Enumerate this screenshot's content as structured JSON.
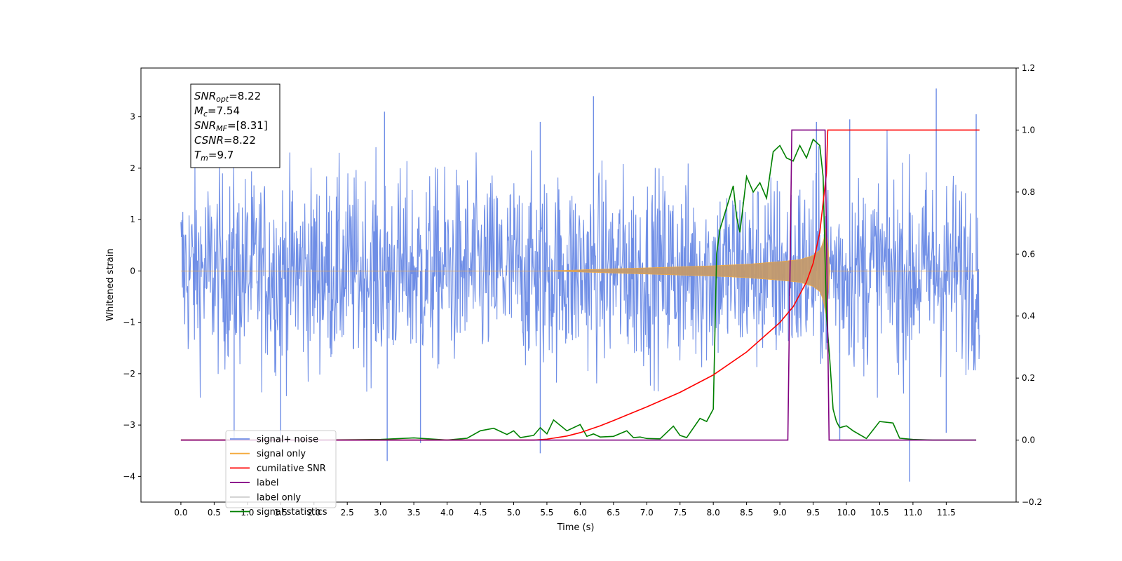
{
  "chart_data": {
    "type": "line",
    "xlabel": "Time (s)",
    "ylabel": "Whitened strain",
    "xlim": [
      -0.6,
      12.55
    ],
    "ylim": [
      -4.5,
      3.95
    ],
    "y2lim": [
      -0.2,
      1.2
    ],
    "x_ticks": [
      0.0,
      0.5,
      1.0,
      1.5,
      2.0,
      2.5,
      3.0,
      3.5,
      4.0,
      4.5,
      5.0,
      5.5,
      6.0,
      6.5,
      7.0,
      7.5,
      8.0,
      8.5,
      9.0,
      9.5,
      10.0,
      10.5,
      11.0,
      11.5
    ],
    "x_tick_labels": [
      "0.0",
      "0.5",
      "1.0",
      "1.5",
      "2.0",
      "2.5",
      "3.0",
      "3.5",
      "4.0",
      "4.5",
      "5.0",
      "5.5",
      "6.0",
      "6.5",
      "7.0",
      "7.5",
      "8.0",
      "8.5",
      "9.0",
      "9.5",
      "10.0",
      "10.5",
      "11.0",
      "11.5"
    ],
    "y_ticks": [
      3,
      2,
      1,
      0,
      -1,
      -2,
      -3,
      -4
    ],
    "y_tick_labels": [
      "3",
      "2",
      "1",
      "0",
      "−1",
      "−2",
      "−3",
      "−4"
    ],
    "y2_ticks": [
      1.2,
      1.0,
      0.8,
      0.6,
      0.4,
      0.2,
      0.0,
      -0.2
    ],
    "y2_tick_labels": [
      "1.2",
      "1.0",
      "0.8",
      "0.6",
      "0.4",
      "0.2",
      "0.0",
      "−0.2"
    ],
    "grid": false,
    "legend_position": "lower-left",
    "annotation": {
      "lines": [
        {
          "sym": "SNR",
          "sub": "opt",
          "val": "=8.22"
        },
        {
          "sym": "M",
          "sub": "c",
          "val": "=7.54"
        },
        {
          "sym": "SNR",
          "sub": "MF",
          "val": "=[8.31]"
        },
        {
          "sym": "CSNR",
          "sub": "",
          "val": "=8.22"
        },
        {
          "sym": "T",
          "sub": "m",
          "val": "=9.7"
        }
      ]
    },
    "series": [
      {
        "name": "signal+ noise",
        "axis": "left",
        "color": "#6f8ee6",
        "style": "noise band",
        "x_range": [
          0.0,
          12.0
        ],
        "envelope_upper": 2.6,
        "envelope_lower": -2.6,
        "spikes": [
          {
            "x": 3.06,
            "y": 3.1
          },
          {
            "x": 5.4,
            "y": 2.9
          },
          {
            "x": 6.2,
            "y": 3.4
          },
          {
            "x": 9.55,
            "y": 2.9
          },
          {
            "x": 10.05,
            "y": 2.95
          },
          {
            "x": 11.35,
            "y": 3.55
          },
          {
            "x": 11.95,
            "y": 3.05
          },
          {
            "x": 3.1,
            "y": -3.7
          },
          {
            "x": 3.6,
            "y": -3.35
          },
          {
            "x": 5.4,
            "y": -3.55
          },
          {
            "x": 0.8,
            "y": -3.3
          },
          {
            "x": 1.5,
            "y": -3.2
          },
          {
            "x": 9.9,
            "y": -3.3
          },
          {
            "x": 10.95,
            "y": -4.1
          },
          {
            "x": 11.5,
            "y": -3.15
          }
        ]
      },
      {
        "name": "signal only",
        "axis": "left",
        "color": "#f4a93b",
        "style": "chirp",
        "x": [
          0.0,
          5.5,
          6.0,
          6.5,
          7.0,
          7.5,
          8.0,
          8.5,
          9.0,
          9.3,
          9.5,
          9.6,
          9.65,
          9.7,
          9.75,
          12.0
        ],
        "amplitude": [
          0.0,
          0.0,
          0.02,
          0.04,
          0.06,
          0.08,
          0.1,
          0.13,
          0.18,
          0.22,
          0.3,
          0.4,
          0.55,
          0.9,
          0.0,
          0.0
        ]
      },
      {
        "name": "cumilative SNR",
        "axis": "right",
        "color": "#ff0000",
        "x": [
          0.0,
          5.3,
          5.5,
          5.8,
          6.0,
          6.3,
          6.5,
          7.0,
          7.5,
          8.0,
          8.5,
          9.0,
          9.2,
          9.4,
          9.5,
          9.6,
          9.7,
          9.72,
          12.0
        ],
        "y": [
          0.0,
          0.0,
          0.003,
          0.013,
          0.024,
          0.046,
          0.063,
          0.107,
          0.154,
          0.21,
          0.284,
          0.379,
          0.43,
          0.51,
          0.57,
          0.67,
          0.86,
          1.0,
          1.0
        ]
      },
      {
        "name": "label",
        "axis": "right",
        "color": "#800080",
        "x": [
          0.0,
          9.12,
          9.18,
          9.68,
          9.74,
          11.95
        ],
        "y": [
          0.0,
          0.0,
          1.0,
          1.0,
          0.0,
          0.0
        ]
      },
      {
        "name": "label only",
        "axis": "right",
        "color": "#cccccc",
        "hidden": true,
        "x": [],
        "y": []
      },
      {
        "name": "signal statistics",
        "axis": "right",
        "color": "#008000",
        "x": [
          0.0,
          2.0,
          3.0,
          3.5,
          4.0,
          4.3,
          4.5,
          4.7,
          4.9,
          5.0,
          5.1,
          5.3,
          5.4,
          5.5,
          5.6,
          5.8,
          6.0,
          6.1,
          6.2,
          6.3,
          6.5,
          6.7,
          6.8,
          6.9,
          7.0,
          7.2,
          7.4,
          7.5,
          7.6,
          7.8,
          7.9,
          8.0,
          8.05,
          8.1,
          8.2,
          8.3,
          8.35,
          8.4,
          8.5,
          8.6,
          8.7,
          8.8,
          8.9,
          9.0,
          9.1,
          9.2,
          9.3,
          9.4,
          9.5,
          9.6,
          9.65,
          9.7,
          9.75,
          9.8,
          9.85,
          9.9,
          10.0,
          10.1,
          10.3,
          10.5,
          10.7,
          10.8,
          11.0,
          11.3,
          11.95
        ],
        "y": [
          0.0,
          0.0,
          0.002,
          0.007,
          0.0,
          0.006,
          0.03,
          0.038,
          0.018,
          0.03,
          0.008,
          0.015,
          0.04,
          0.02,
          0.065,
          0.03,
          0.05,
          0.012,
          0.02,
          0.01,
          0.012,
          0.03,
          0.008,
          0.01,
          0.005,
          0.004,
          0.045,
          0.015,
          0.008,
          0.07,
          0.06,
          0.1,
          0.6,
          0.68,
          0.75,
          0.82,
          0.72,
          0.67,
          0.85,
          0.8,
          0.83,
          0.78,
          0.93,
          0.95,
          0.91,
          0.9,
          0.95,
          0.91,
          0.97,
          0.95,
          0.85,
          0.4,
          0.26,
          0.1,
          0.06,
          0.04,
          0.046,
          0.03,
          0.005,
          0.06,
          0.055,
          0.006,
          0.002,
          0.0,
          0.0
        ]
      }
    ]
  }
}
